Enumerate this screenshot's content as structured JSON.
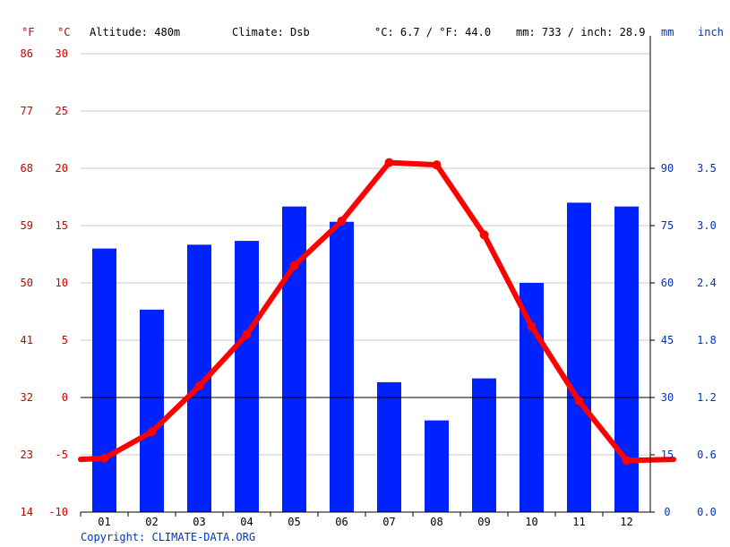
{
  "header": {
    "unit_f": "°F",
    "unit_c": "°C",
    "altitude": "Altitude: 480m",
    "climate": "Climate: Dsb",
    "temp_avg": "°C: 6.7 / °F: 44.0",
    "precip_total": "mm: 733 / inch: 28.9",
    "unit_mm": "mm",
    "unit_inch": "inch"
  },
  "copyright": "Copyright: CLIMATE-DATA.ORG",
  "colors": {
    "temp": "#ff0000",
    "precip": "#0022ff",
    "axis_left": "#cc0000",
    "axis_right": "#0033cc",
    "grid": "#c8c8c8"
  },
  "chart_data": {
    "type": "bar",
    "categories": [
      "01",
      "02",
      "03",
      "04",
      "05",
      "06",
      "07",
      "08",
      "09",
      "10",
      "11",
      "12"
    ],
    "series": [
      {
        "type": "bar",
        "axis": "right",
        "values": [
          69,
          53,
          70,
          71,
          80,
          76,
          34,
          24,
          35,
          60,
          81,
          80
        ]
      },
      {
        "type": "line",
        "axis": "left",
        "values": [
          -5.3,
          -3.0,
          1.0,
          5.5,
          11.5,
          15.4,
          20.5,
          20.3,
          14.2,
          6.2,
          -0.3,
          -5.5
        ]
      }
    ],
    "left_axis": {
      "celsius_ticks": [
        "30",
        "25",
        "20",
        "15",
        "10",
        "5",
        "0",
        "-5",
        "-10"
      ],
      "fahrenheit_ticks": [
        "86",
        "77",
        "68",
        "59",
        "50",
        "41",
        "32",
        "23",
        "14"
      ],
      "range": [
        -10,
        30
      ]
    },
    "right_axis": {
      "mm_ticks": [
        "90",
        "75",
        "60",
        "45",
        "30",
        "15",
        "0"
      ],
      "inch_ticks": [
        "3.5",
        "3.0",
        "2.4",
        "1.8",
        "1.2",
        "0.6",
        "0.0"
      ],
      "range": [
        0,
        120
      ]
    },
    "grid": true
  }
}
